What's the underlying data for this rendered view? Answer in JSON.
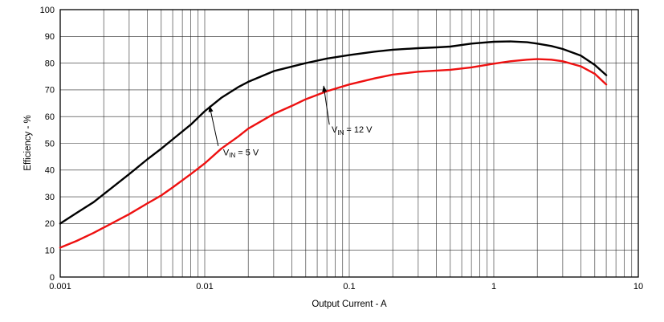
{
  "chart_data": {
    "type": "line",
    "title": "",
    "xlabel": "Output Current - A",
    "ylabel": "Efficiency - %",
    "x_scale": "log",
    "grid": true,
    "legend_position": "none",
    "xlim": [
      0.001,
      10
    ],
    "ylim": [
      0,
      100
    ],
    "x_ticks": [
      {
        "v": 0.001,
        "label": "0.001"
      },
      {
        "v": 0.01,
        "label": "0.01"
      },
      {
        "v": 0.1,
        "label": "0.1"
      },
      {
        "v": 1,
        "label": "1"
      },
      {
        "v": 10,
        "label": "10"
      }
    ],
    "y_ticks": [
      0,
      10,
      20,
      30,
      40,
      50,
      60,
      70,
      80,
      90,
      100
    ],
    "series": [
      {
        "name": "VIN = 5 V",
        "color": "#000000",
        "points": [
          [
            0.001,
            20
          ],
          [
            0.0013,
            24
          ],
          [
            0.0017,
            28
          ],
          [
            0.002,
            31
          ],
          [
            0.003,
            38.5
          ],
          [
            0.004,
            44
          ],
          [
            0.005,
            48
          ],
          [
            0.006,
            51.5
          ],
          [
            0.008,
            57
          ],
          [
            0.01,
            62
          ],
          [
            0.013,
            67
          ],
          [
            0.017,
            71
          ],
          [
            0.02,
            73
          ],
          [
            0.03,
            77
          ],
          [
            0.04,
            78.7
          ],
          [
            0.05,
            80
          ],
          [
            0.07,
            81.7
          ],
          [
            0.1,
            83
          ],
          [
            0.15,
            84.3
          ],
          [
            0.2,
            85
          ],
          [
            0.3,
            85.6
          ],
          [
            0.4,
            85.9
          ],
          [
            0.5,
            86.2
          ],
          [
            0.7,
            87.3
          ],
          [
            1,
            88
          ],
          [
            1.3,
            88.1
          ],
          [
            1.7,
            87.8
          ],
          [
            2,
            87.3
          ],
          [
            2.5,
            86.4
          ],
          [
            3,
            85.3
          ],
          [
            4,
            82.8
          ],
          [
            5,
            79.3
          ],
          [
            6,
            75.5
          ]
        ]
      },
      {
        "name": "VIN = 12 V",
        "color": "#ee1111",
        "points": [
          [
            0.001,
            11
          ],
          [
            0.0013,
            13.5
          ],
          [
            0.0017,
            16.5
          ],
          [
            0.002,
            18.5
          ],
          [
            0.003,
            23.5
          ],
          [
            0.004,
            27.5
          ],
          [
            0.005,
            30.5
          ],
          [
            0.006,
            33.5
          ],
          [
            0.008,
            38.5
          ],
          [
            0.01,
            42.5
          ],
          [
            0.013,
            48
          ],
          [
            0.017,
            52.5
          ],
          [
            0.02,
            55.5
          ],
          [
            0.03,
            61
          ],
          [
            0.04,
            64
          ],
          [
            0.05,
            66.5
          ],
          [
            0.07,
            69.5
          ],
          [
            0.1,
            72
          ],
          [
            0.15,
            74.3
          ],
          [
            0.2,
            75.7
          ],
          [
            0.3,
            76.8
          ],
          [
            0.4,
            77.2
          ],
          [
            0.5,
            77.5
          ],
          [
            0.7,
            78.4
          ],
          [
            1,
            79.8
          ],
          [
            1.3,
            80.7
          ],
          [
            1.7,
            81.3
          ],
          [
            2,
            81.5
          ],
          [
            2.5,
            81.3
          ],
          [
            3,
            80.7
          ],
          [
            4,
            78.8
          ],
          [
            5,
            76
          ],
          [
            6,
            72
          ]
        ]
      }
    ],
    "annotations": [
      {
        "prefix": "V",
        "sub": "IN",
        "suffix": " = 5 V",
        "x": 0.0134,
        "y": 45.5,
        "arrow": {
          "x1": 0.0124,
          "y1": 49,
          "x2": 0.0108,
          "y2": 64
        }
      },
      {
        "prefix": "V",
        "sub": "IN",
        "suffix": " = 12 V",
        "x": 0.0755,
        "y": 54,
        "arrow": {
          "x1": 0.0728,
          "y1": 57,
          "x2": 0.0665,
          "y2": 71.5
        }
      }
    ]
  }
}
